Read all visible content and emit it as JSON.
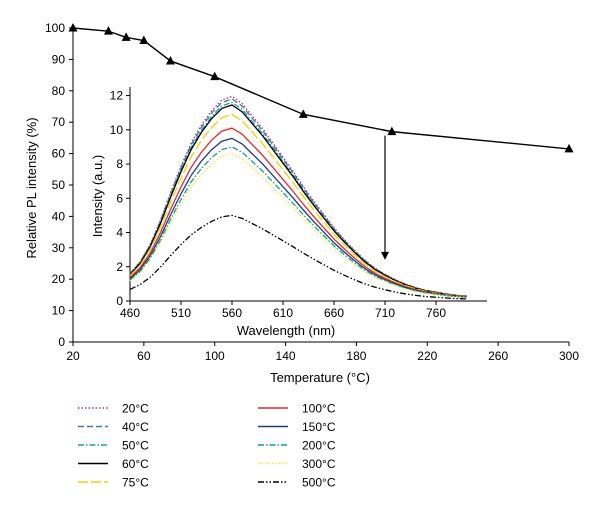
{
  "chart_data": [
    {
      "type": "line",
      "xlabel": "Temperature (°C)",
      "ylabel": "Relative PL intensity (%)",
      "xlim": [
        20,
        300
      ],
      "ylim": [
        0,
        100
      ],
      "x_ticks": [
        "20",
        "60",
        "100",
        "140",
        "180",
        "220",
        "260",
        "300"
      ],
      "y_ticks": [
        "0",
        "10",
        "20",
        "30",
        "40",
        "50",
        "60",
        "70",
        "80",
        "90",
        "100"
      ],
      "grid": false,
      "series": [
        {
          "marker": "triangle",
          "color": "#000000",
          "x": [
            20,
            40,
            50,
            60,
            75,
            100,
            150,
            200,
            300
          ],
          "y": [
            100,
            99,
            97,
            96,
            89.5,
            84.5,
            72.5,
            67,
            61.5
          ]
        }
      ]
    },
    {
      "type": "line",
      "xlabel": "Wavelength (nm)",
      "ylabel": "Intensity (a.u.)",
      "xlim": [
        460,
        810
      ],
      "ylim": [
        0,
        12.5
      ],
      "x_ticks": [
        "460",
        "510",
        "560",
        "610",
        "660",
        "710",
        "760"
      ],
      "y_ticks": [
        "0",
        "2",
        "4",
        "6",
        "8",
        "10",
        "12"
      ],
      "grid": false,
      "legend_position": "bottom",
      "annotation": "downward arrow at 710 nm from the 200°C point toward the lower curves",
      "wavelengths": [
        460,
        470,
        480,
        490,
        500,
        510,
        520,
        530,
        540,
        550,
        560,
        570,
        580,
        590,
        600,
        610,
        620,
        630,
        640,
        650,
        660,
        670,
        680,
        690,
        700,
        710,
        720,
        730,
        740,
        750,
        760,
        770,
        780,
        790
      ],
      "series": [
        {
          "name": "20°C",
          "color": "#c0306a",
          "dash": "dot",
          "peak": 11.95
        },
        {
          "name": "40°C",
          "color": "#4a73b5",
          "dash": "dash",
          "peak": 11.8
        },
        {
          "name": "50°C",
          "color": "#1fa39b",
          "dash": "dashdot",
          "peak": 11.6
        },
        {
          "name": "60°C",
          "color": "#000000",
          "dash": "solid",
          "peak": 11.45
        },
        {
          "name": "75°C",
          "color": "#f2d200",
          "dash": "longdash",
          "peak": 10.9
        },
        {
          "name": "100°C",
          "color": "#e8262b",
          "dash": "solid",
          "peak": 10.1
        },
        {
          "name": "150°C",
          "color": "#1b3d86",
          "dash": "solid",
          "peak": 9.5
        },
        {
          "name": "200°C",
          "color": "#1a9e8f",
          "dash": "dashdot",
          "peak": 9.0
        },
        {
          "name": "300°C",
          "color": "#f0ea30",
          "dash": "dot",
          "peak": 8.6
        },
        {
          "name": "500°C",
          "color": "#000000",
          "dash": "dashdotdot",
          "peak": 5.0
        }
      ],
      "curve_shape": [
        1.55,
        2.2,
        3.2,
        4.55,
        6.1,
        7.55,
        8.85,
        9.85,
        10.65,
        11.25,
        11.45,
        11.05,
        10.35,
        9.65,
        8.85,
        8.05,
        7.25,
        6.4,
        5.6,
        4.85,
        4.1,
        3.45,
        2.85,
        2.3,
        1.85,
        1.5,
        1.2,
        0.95,
        0.75,
        0.6,
        0.5,
        0.4,
        0.32,
        0.28
      ]
    }
  ]
}
